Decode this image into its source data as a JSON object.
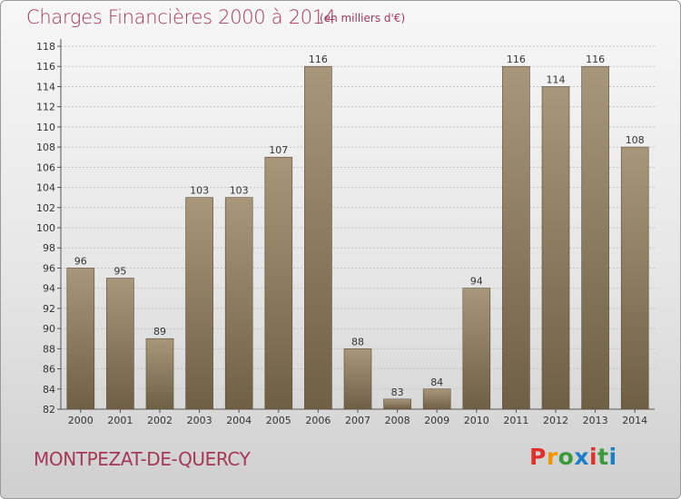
{
  "header": {
    "title": "Charges Financières 2000 à 2014",
    "subtitle": "(en milliers d'€)"
  },
  "footer": {
    "commune": "MONTPEZAT-DE-QUERCY",
    "brand": {
      "text": "Proxiti",
      "colors": [
        "#e0312b",
        "#f29400",
        "#3c9a3c",
        "#1a7fc8",
        "#e0312b",
        "#3c9a3c",
        "#1a7fc8"
      ]
    }
  },
  "chart_data": {
    "type": "bar",
    "title": "Charges Financières 2000 à 2014",
    "subtitle": "(en milliers d'€)",
    "categories": [
      "2000",
      "2001",
      "2002",
      "2003",
      "2004",
      "2005",
      "2006",
      "2007",
      "2008",
      "2009",
      "2010",
      "2011",
      "2012",
      "2013",
      "2014"
    ],
    "values": [
      96,
      95,
      89,
      103,
      103,
      107,
      116,
      88,
      83,
      84,
      94,
      116,
      114,
      116,
      108
    ],
    "ylim": [
      82,
      118
    ],
    "yticks": [
      82,
      84,
      86,
      88,
      90,
      92,
      94,
      96,
      98,
      100,
      102,
      104,
      106,
      108,
      110,
      112,
      114,
      116,
      118
    ],
    "grid": true,
    "bar_color": "#8c7b5c"
  }
}
